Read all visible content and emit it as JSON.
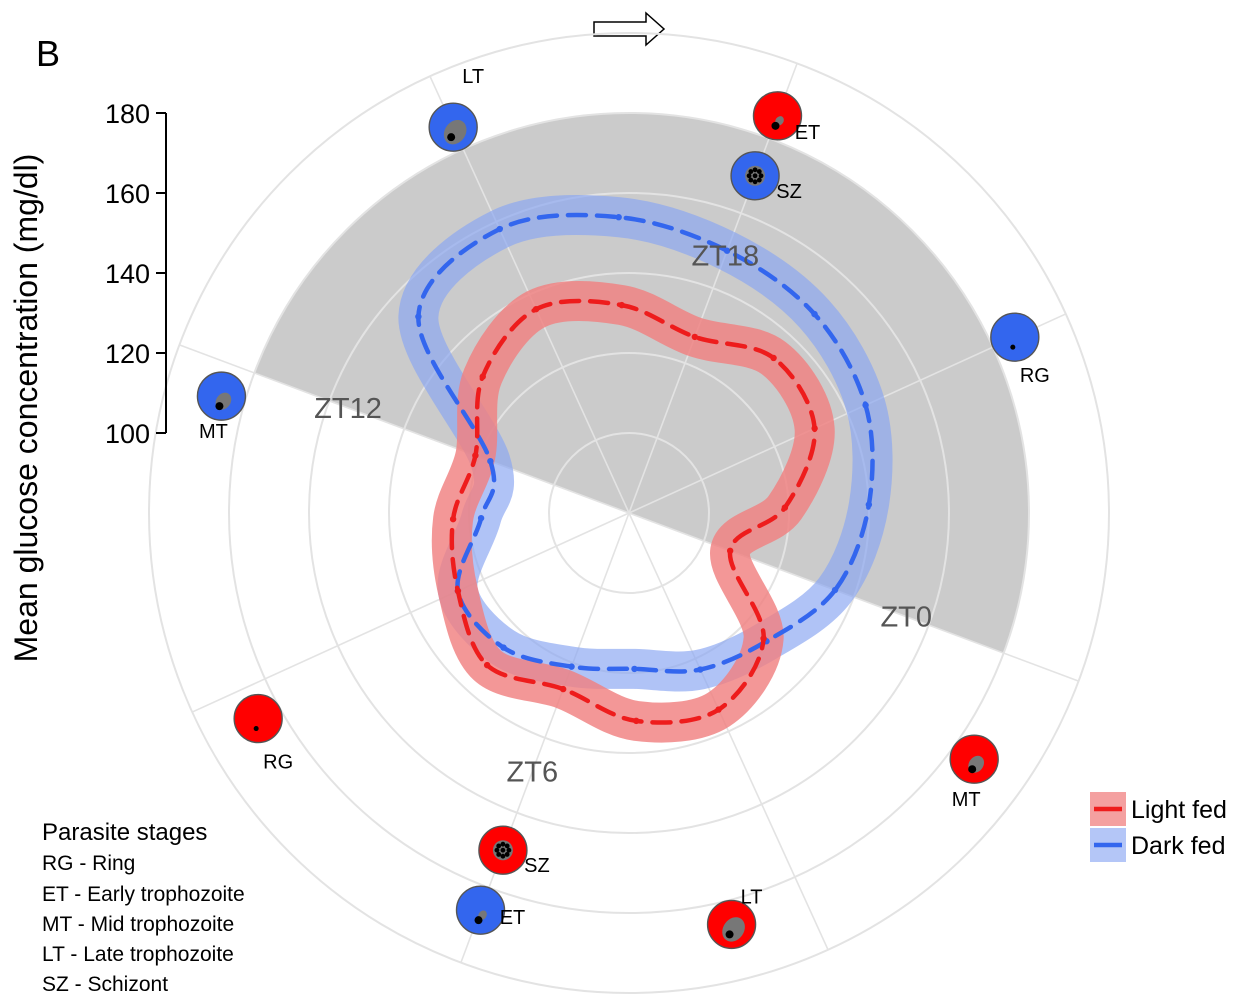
{
  "panel_label": "B",
  "chart_data": {
    "type": "polar-line",
    "ylabel": "Mean glucose concentration (mg/dl)",
    "r_ticks": [
      100,
      120,
      140,
      160,
      180
    ],
    "r_range": [
      80,
      180
    ],
    "time_points": [
      "ZT0",
      "ZT6",
      "ZT12",
      "ZT18"
    ],
    "dark_period_shaded": true,
    "series": [
      {
        "name": "Light fed",
        "color": "#ee1c1c",
        "band_color": "#f08080",
        "zt": [
          0,
          1.5,
          3,
          4.5,
          6,
          7.5,
          9,
          10.5,
          12,
          13.5,
          15,
          16.5,
          18,
          19.5,
          21,
          22.5
        ],
        "values": [
          107,
          126,
          134,
          132,
          127,
          132,
          127,
          124,
          121,
          130,
          136,
          132,
          127,
          133,
          131,
          119
        ]
      },
      {
        "name": "Dark fed",
        "color": "#3366ee",
        "band_color": "#8aa6f2",
        "zt": [
          0,
          1.5,
          3,
          4.5,
          6,
          7.5,
          9,
          10.5,
          12,
          13.5,
          15,
          16.5,
          18,
          19.5,
          21,
          22.5
        ],
        "values": [
          135,
          127,
          123,
          119,
          121,
          126,
          127,
          117,
          117,
          152,
          158,
          154,
          150,
          148,
          145,
          140
        ]
      }
    ],
    "stages_outer": [
      {
        "label": "ET",
        "color": "#ff0000",
        "zt": 18
      },
      {
        "label": "RG",
        "color": "#3366ee",
        "zt": 21
      },
      {
        "label": "MT",
        "color": "#ff0000",
        "zt": 1
      },
      {
        "label": "LT",
        "color": "#ff0000",
        "zt": 3.7
      },
      {
        "label": "ET",
        "color": "#3366ee",
        "zt": 6
      },
      {
        "label": "RG",
        "color": "#ff0000",
        "zt": 8.7
      },
      {
        "label": "MT",
        "color": "#3366ee",
        "zt": 11.7
      },
      {
        "label": "LT",
        "color": "#3366ee",
        "zt": 15
      }
    ],
    "stages_inner": [
      {
        "label": "SZ",
        "color": "#3366ee",
        "zt": 18
      },
      {
        "label": "SZ",
        "color": "#ff0000",
        "zt": 6
      }
    ]
  },
  "legend": {
    "items": [
      {
        "label": "Light fed",
        "line": "#ee1c1c",
        "band": "#f4a0a0"
      },
      {
        "label": "Dark fed",
        "line": "#3366ee",
        "band": "#b4c6f7"
      }
    ]
  },
  "key": {
    "title": "Parasite stages",
    "lines": [
      "RG - Ring",
      "ET - Early trophozoite",
      "MT - Mid trophozoite",
      "LT - Late trophozoite",
      "SZ - Schizont"
    ]
  }
}
